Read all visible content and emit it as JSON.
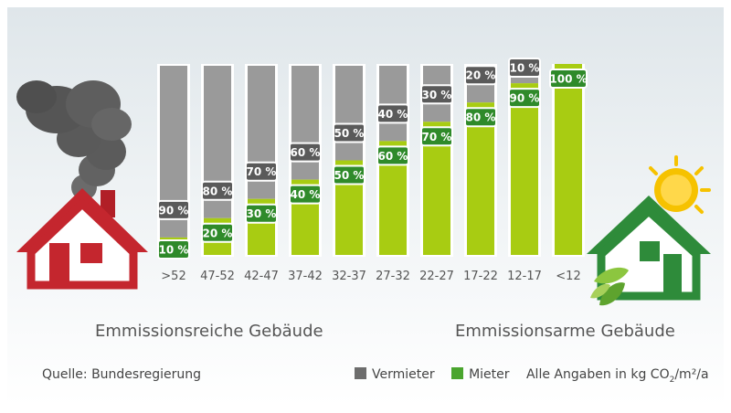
{
  "labels": {
    "left_caption": "Emmissionsreiche Gebäude",
    "right_caption": "Emmissionsarme Gebäude",
    "source": "Quelle: Bundesregierung",
    "units_prefix": "Alle Angaben in kg CO",
    "units_sub": "2",
    "units_suffix": "/m²/a"
  },
  "colors": {
    "vermieter": "#6d6d6d",
    "mieter": "#4aa52e",
    "bar_gray": "#9a9a9a",
    "bar_green": "#a8cc12",
    "label_bg": "#5a5a5a",
    "label_green_bg": "#2f8a2a",
    "house_red": "#c4262e",
    "house_green": "#2e8b3a",
    "smoke": "#555555",
    "sun": "#f6c200"
  },
  "icons": {
    "left_house": "red-house-icon",
    "right_house": "green-house-icon",
    "smoke": "smoke-cloud-icon",
    "sun": "sun-icon",
    "leaves": "leaves-icon"
  },
  "chart_data": {
    "type": "bar",
    "stacked": true,
    "percent": true,
    "categories": [
      ">52",
      "47-52",
      "42-47",
      "37-42",
      "32-37",
      "27-32",
      "22-27",
      "17-22",
      "12-17",
      "<12"
    ],
    "series": [
      {
        "name": "Vermieter",
        "values": [
          90,
          80,
          70,
          60,
          50,
          40,
          30,
          20,
          10,
          0
        ],
        "labels": [
          "90 %",
          "80 %",
          "70 %",
          "60 %",
          "50 %",
          "40 %",
          "30 %",
          "20 %",
          "10 %",
          ""
        ]
      },
      {
        "name": "Mieter",
        "values": [
          10,
          20,
          30,
          40,
          50,
          60,
          70,
          80,
          90,
          100
        ],
        "labels": [
          "10 %",
          "20 %",
          "30 %",
          "40 %",
          "50 %",
          "60 %",
          "70 %",
          "80 %",
          "90 %",
          "100 %"
        ]
      }
    ],
    "ylim": [
      0,
      100
    ],
    "grid": false,
    "legend_position": "bottom-right",
    "xlabel": "",
    "ylabel": ""
  }
}
